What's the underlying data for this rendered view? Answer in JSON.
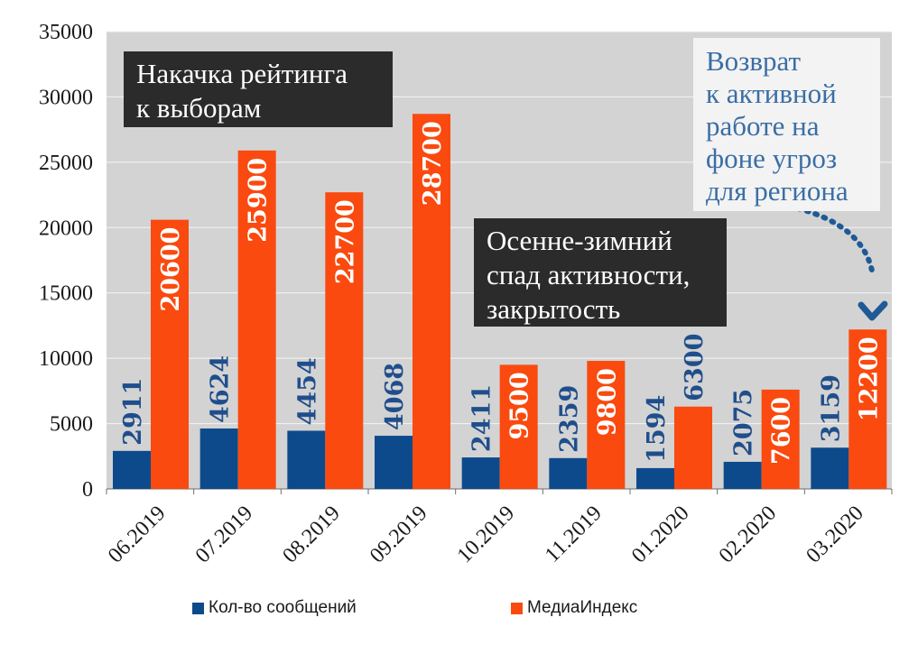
{
  "chart_data": {
    "type": "bar",
    "categories": [
      "06.2019",
      "07.2019",
      "08.2019",
      "09.2019",
      "10.2019",
      "11.2019",
      "01.2020",
      "02.2020",
      "03.2020"
    ],
    "series": [
      {
        "name": "Кол-во сообщений",
        "color": "#0d4a8c",
        "values": [
          2911,
          4624,
          4454,
          4068,
          2411,
          2359,
          1594,
          2075,
          3159
        ]
      },
      {
        "name": "МедиаИндекс",
        "color": "#fa4a0f",
        "values": [
          20600,
          25900,
          22700,
          28700,
          9500,
          9800,
          6300,
          7600,
          12200
        ]
      }
    ],
    "yticks": [
      "0",
      "5000",
      "10000",
      "15000",
      "20000",
      "25000",
      "30000",
      "35000"
    ],
    "ylim": [
      0,
      35000
    ],
    "grid": true,
    "legend_position": "bottom",
    "plot_background": "#d3d3d3",
    "annotations": [
      {
        "id": "rating",
        "text_lines": [
          "Накачка рейтинга",
          "к выборам"
        ]
      },
      {
        "id": "autumn",
        "text_lines": [
          "Осенне-зимний",
          "спад активности,",
          "закрытость"
        ]
      },
      {
        "id": "return",
        "text_lines": [
          "Возврат",
          "к активной",
          "работе на",
          "фоне угроз",
          "для региона"
        ]
      }
    ]
  }
}
